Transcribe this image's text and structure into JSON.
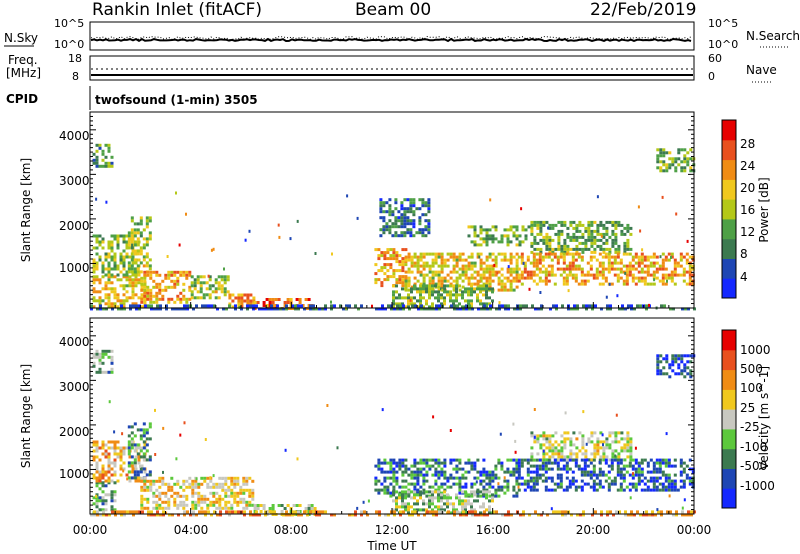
{
  "header": {
    "title": "Rankin Inlet (fitACF)",
    "beam": "Beam 00",
    "date": "22/Feb/2019"
  },
  "side_labels": {
    "nsky": "N.Sky",
    "freq_line1": "Freq.",
    "freq_line2": "[MHz]",
    "cpid": "CPID",
    "nsearch": "N.Search",
    "nave": "Nave"
  },
  "noise_panel": {
    "left_ticks": [
      "10^5",
      "10^0"
    ],
    "right_ticks": [
      "10^5",
      "10^0"
    ]
  },
  "freq_panel": {
    "left_ticks": [
      "18",
      "8"
    ],
    "right_ticks": [
      "60",
      "0"
    ]
  },
  "cpid_text": "twofsound (1-min) 3505",
  "x_axis": {
    "label": "Time UT",
    "ticks": [
      "00:00",
      "04:00",
      "08:00",
      "12:00",
      "16:00",
      "20:00",
      "00:00"
    ]
  },
  "y_axis": {
    "label": "Slant Range [km]",
    "ticks": [
      "1000",
      "2000",
      "3000",
      "4000"
    ]
  },
  "power_colorbar": {
    "label": "Power [dB]",
    "ticks": [
      "4",
      "8",
      "12",
      "16",
      "20",
      "24",
      "28"
    ]
  },
  "velocity_colorbar": {
    "label": "Velocity [m s^-1]",
    "ticks": [
      "1000",
      "500",
      "100",
      "25",
      "-25",
      "-100",
      "-500",
      "-1000"
    ]
  },
  "colors": {
    "power_scale": [
      "#1428ff",
      "#1e46b4",
      "#3c7a50",
      "#4ea046",
      "#b4c818",
      "#f0c81e",
      "#f08c14",
      "#e8501e",
      "#e60000"
    ],
    "velocity_scale": [
      "#1428ff",
      "#1e46b4",
      "#3c7a50",
      "#5cc83c",
      "#c8c8c0",
      "#f0c81e",
      "#f08c14",
      "#e8501e",
      "#e60000"
    ]
  },
  "chart_data": [
    {
      "type": "heatmap",
      "title": "Power",
      "xlabel": "Time UT",
      "ylabel": "Slant Range [km]",
      "xlim": [
        0,
        24
      ],
      "ylim": [
        180,
        4500
      ],
      "colorbar": {
        "label": "Power [dB]",
        "range": [
          0,
          30
        ]
      },
      "regions": [
        {
          "t0": 0.1,
          "t1": 2.2,
          "r0": 200,
          "r1": 900,
          "v": 18
        },
        {
          "t0": 0.1,
          "t1": 2.0,
          "r0": 900,
          "r1": 1800,
          "v": 14
        },
        {
          "t0": 1.5,
          "t1": 2.4,
          "r0": 1000,
          "r1": 2200,
          "v": 15
        },
        {
          "t0": 2.0,
          "t1": 4.0,
          "r0": 300,
          "r1": 1000,
          "v": 20
        },
        {
          "t0": 4.0,
          "t1": 5.5,
          "r0": 400,
          "r1": 900,
          "v": 15
        },
        {
          "t0": 5.5,
          "t1": 6.5,
          "r0": 200,
          "r1": 500,
          "v": 22
        },
        {
          "t0": 6.5,
          "t1": 9.0,
          "r0": 180,
          "r1": 400,
          "v": 24
        },
        {
          "t0": 0.1,
          "t1": 0.9,
          "r0": 3300,
          "r1": 3800,
          "v": 10
        },
        {
          "t0": 11.3,
          "t1": 12.5,
          "r0": 700,
          "r1": 1500,
          "v": 20
        },
        {
          "t0": 12.5,
          "t1": 17.0,
          "r0": 600,
          "r1": 1400,
          "v": 18
        },
        {
          "t0": 12.0,
          "t1": 16.0,
          "r0": 200,
          "r1": 700,
          "v": 13
        },
        {
          "t0": 15.0,
          "t1": 17.5,
          "r0": 1600,
          "r1": 2000,
          "v": 12
        },
        {
          "t0": 17.5,
          "t1": 21.5,
          "r0": 1400,
          "r1": 2100,
          "v": 12
        },
        {
          "t0": 17.0,
          "t1": 24.0,
          "r0": 700,
          "r1": 1400,
          "v": 20
        },
        {
          "t0": 22.5,
          "t1": 24.0,
          "r0": 3200,
          "r1": 3700,
          "v": 12
        },
        {
          "t0": 11.5,
          "t1": 13.5,
          "r0": 1800,
          "r1": 2600,
          "v": 8
        },
        {
          "t0": 0.0,
          "t1": 24.0,
          "r0": 180,
          "r1": 260,
          "v": 6
        }
      ]
    },
    {
      "type": "heatmap",
      "title": "Velocity",
      "xlabel": "Time UT",
      "ylabel": "Slant Range [km]",
      "xlim": [
        0,
        24
      ],
      "ylim": [
        180,
        4500
      ],
      "colorbar": {
        "label": "Velocity [m s^-1]",
        "range": [
          -1000,
          1000
        ]
      },
      "regions": [
        {
          "t0": 0.1,
          "t1": 1.0,
          "r0": 200,
          "r1": 900,
          "v": -300
        },
        {
          "t0": 0.1,
          "t1": 2.2,
          "r0": 900,
          "r1": 1800,
          "v": 300
        },
        {
          "t0": 1.5,
          "t1": 2.4,
          "r0": 1000,
          "r1": 2200,
          "v": -400
        },
        {
          "t0": 2.0,
          "t1": 6.5,
          "r0": 300,
          "r1": 1000,
          "v": 150
        },
        {
          "t0": 6.5,
          "t1": 9.0,
          "r0": 180,
          "r1": 400,
          "v": -50
        },
        {
          "t0": 0.1,
          "t1": 0.9,
          "r0": 3300,
          "r1": 3800,
          "v": -300
        },
        {
          "t0": 11.3,
          "t1": 17.0,
          "r0": 600,
          "r1": 1400,
          "v": -500
        },
        {
          "t0": 12.0,
          "t1": 16.0,
          "r0": 200,
          "r1": 700,
          "v": -150
        },
        {
          "t0": 17.5,
          "t1": 21.5,
          "r0": 1400,
          "r1": 2000,
          "v": 0
        },
        {
          "t0": 17.0,
          "t1": 24.0,
          "r0": 700,
          "r1": 1400,
          "v": -600
        },
        {
          "t0": 22.5,
          "t1": 24.0,
          "r0": 3200,
          "r1": 3700,
          "v": -700
        },
        {
          "t0": 0.0,
          "t1": 24.0,
          "r0": 180,
          "r1": 260,
          "v": 400
        }
      ]
    }
  ]
}
